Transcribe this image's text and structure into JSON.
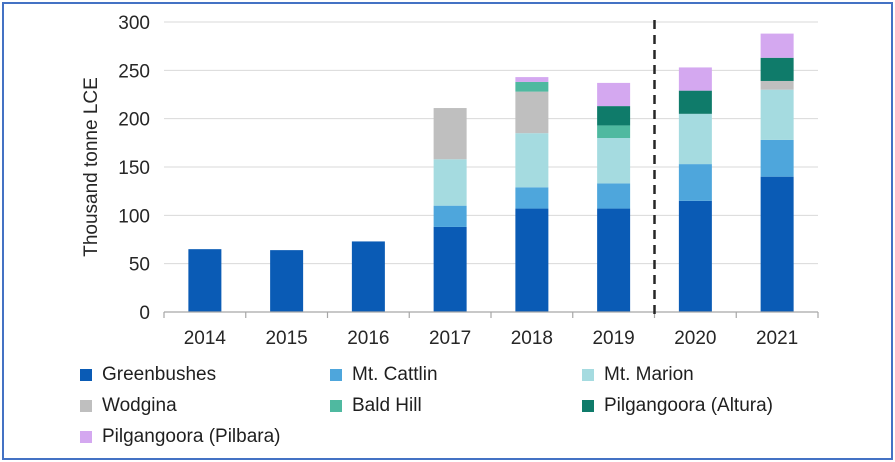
{
  "chart_data": {
    "type": "bar",
    "stacked": true,
    "categories": [
      "2014",
      "2015",
      "2016",
      "2017",
      "2018",
      "2019",
      "2020",
      "2021"
    ],
    "ylabel": "Thousand tonne LCE",
    "xlabel": "",
    "title": "",
    "ylim": [
      0,
      300
    ],
    "yticks": [
      0,
      50,
      100,
      150,
      200,
      250,
      300
    ],
    "grid": "horizontal",
    "forecast_divider_after": "2019",
    "legend_position": "bottom",
    "series": [
      {
        "name": "Greenbushes",
        "color": "#0a5bb5",
        "values": [
          65,
          64,
          73,
          88,
          107,
          107,
          115,
          140
        ]
      },
      {
        "name": "Mt. Cattlin",
        "color": "#4ea6dc",
        "values": [
          0,
          0,
          0,
          22,
          22,
          26,
          38,
          38
        ]
      },
      {
        "name": "Mt. Marion",
        "color": "#a5dbe0",
        "values": [
          0,
          0,
          0,
          48,
          56,
          47,
          52,
          52
        ]
      },
      {
        "name": "Wodgina",
        "color": "#bfbfbf",
        "values": [
          0,
          0,
          0,
          53,
          43,
          0,
          0,
          9
        ]
      },
      {
        "name": "Bald Hill",
        "color": "#4fb9a0",
        "values": [
          0,
          0,
          0,
          0,
          10,
          13,
          0,
          0
        ]
      },
      {
        "name": "Pilgangoora (Altura)",
        "color": "#0f7b6a",
        "values": [
          0,
          0,
          0,
          0,
          0,
          20,
          24,
          24
        ]
      },
      {
        "name": "Pilgangoora (Pilbara)",
        "color": "#d4a8f0",
        "values": [
          0,
          0,
          0,
          0,
          5,
          24,
          24,
          25
        ]
      }
    ]
  }
}
